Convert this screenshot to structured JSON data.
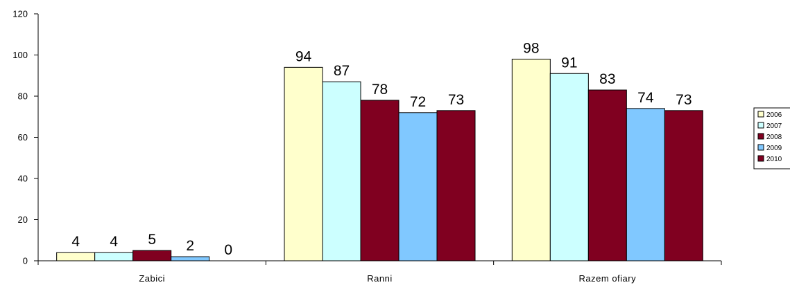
{
  "chart_data": {
    "type": "bar",
    "categories": [
      "Zabici",
      "Ranni",
      "Razem ofiary"
    ],
    "series": [
      {
        "name": "2006",
        "values": [
          4,
          94,
          98
        ],
        "color": "#ffffcc"
      },
      {
        "name": "2007",
        "values": [
          4,
          87,
          91
        ],
        "color": "#ccffff"
      },
      {
        "name": "2008",
        "values": [
          5,
          78,
          83
        ],
        "color": "#800020"
      },
      {
        "name": "2009",
        "values": [
          2,
          72,
          74
        ],
        "color": "#80c8ff"
      },
      {
        "name": "2010",
        "values": [
          0,
          73,
          73
        ],
        "color": "#800020"
      }
    ],
    "data_labels": [
      [
        "4",
        "94",
        "98"
      ],
      [
        "4",
        "87",
        "91"
      ],
      [
        "5",
        "78",
        "83"
      ],
      [
        "2",
        "72",
        "74"
      ],
      [
        "0",
        "73",
        "73"
      ]
    ],
    "ylim": [
      0,
      120
    ],
    "yticks": [
      0,
      20,
      40,
      60,
      80,
      100,
      120
    ],
    "grid": false,
    "legend_position": "right"
  }
}
